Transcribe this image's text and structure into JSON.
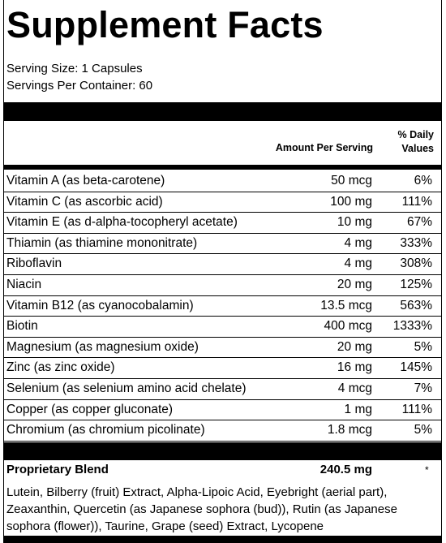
{
  "title": "Supplement Facts",
  "serving_size": "Serving Size: 1 Capsules",
  "servings_per_container": "Servings Per Container: 60",
  "header": {
    "amount": "Amount Per Serving",
    "daily_value": "% Daily Values"
  },
  "nutrients": [
    {
      "name": "Vitamin A (as beta-carotene)",
      "amount": "50 mcg",
      "dv": "6%"
    },
    {
      "name": "Vitamin C (as ascorbic acid)",
      "amount": "100 mg",
      "dv": "111%"
    },
    {
      "name": "Vitamin E (as d-alpha-tocopheryl acetate)",
      "amount": "10 mg",
      "dv": "67%"
    },
    {
      "name": "Thiamin (as thiamine mononitrate)",
      "amount": "4 mg",
      "dv": "333%"
    },
    {
      "name": "Riboflavin",
      "amount": "4 mg",
      "dv": "308%"
    },
    {
      "name": "Niacin",
      "amount": "20 mg",
      "dv": "125%"
    },
    {
      "name": "Vitamin B12 (as cyanocobalamin)",
      "amount": "13.5 mcg",
      "dv": "563%"
    },
    {
      "name": "Biotin",
      "amount": "400 mcg",
      "dv": "1333%"
    },
    {
      "name": "Magnesium (as magnesium oxide)",
      "amount": "20 mg",
      "dv": "5%"
    },
    {
      "name": "Zinc (as zinc oxide)",
      "amount": "16 mg",
      "dv": "145%"
    },
    {
      "name": "Selenium (as selenium amino acid chelate)",
      "amount": "4 mcg",
      "dv": "7%"
    },
    {
      "name": "Copper (as copper gluconate)",
      "amount": "1 mg",
      "dv": "111%"
    },
    {
      "name": "Chromium (as chromium picolinate)",
      "amount": "1.8 mcg",
      "dv": "5%"
    }
  ],
  "blend": {
    "name": "Proprietary Blend",
    "amount": "240.5 mg",
    "dv": "*",
    "ingredients": "Lutein, Bilberry (fruit) Extract, Alpha-Lipoic Acid, Eyebright (aerial part), Zeaxanthin, Quercetin (as Japanese sophora (bud)), Rutin (as Japanese sophora (flower)), Taurine, Grape (seed) Extract, Lycopene"
  }
}
